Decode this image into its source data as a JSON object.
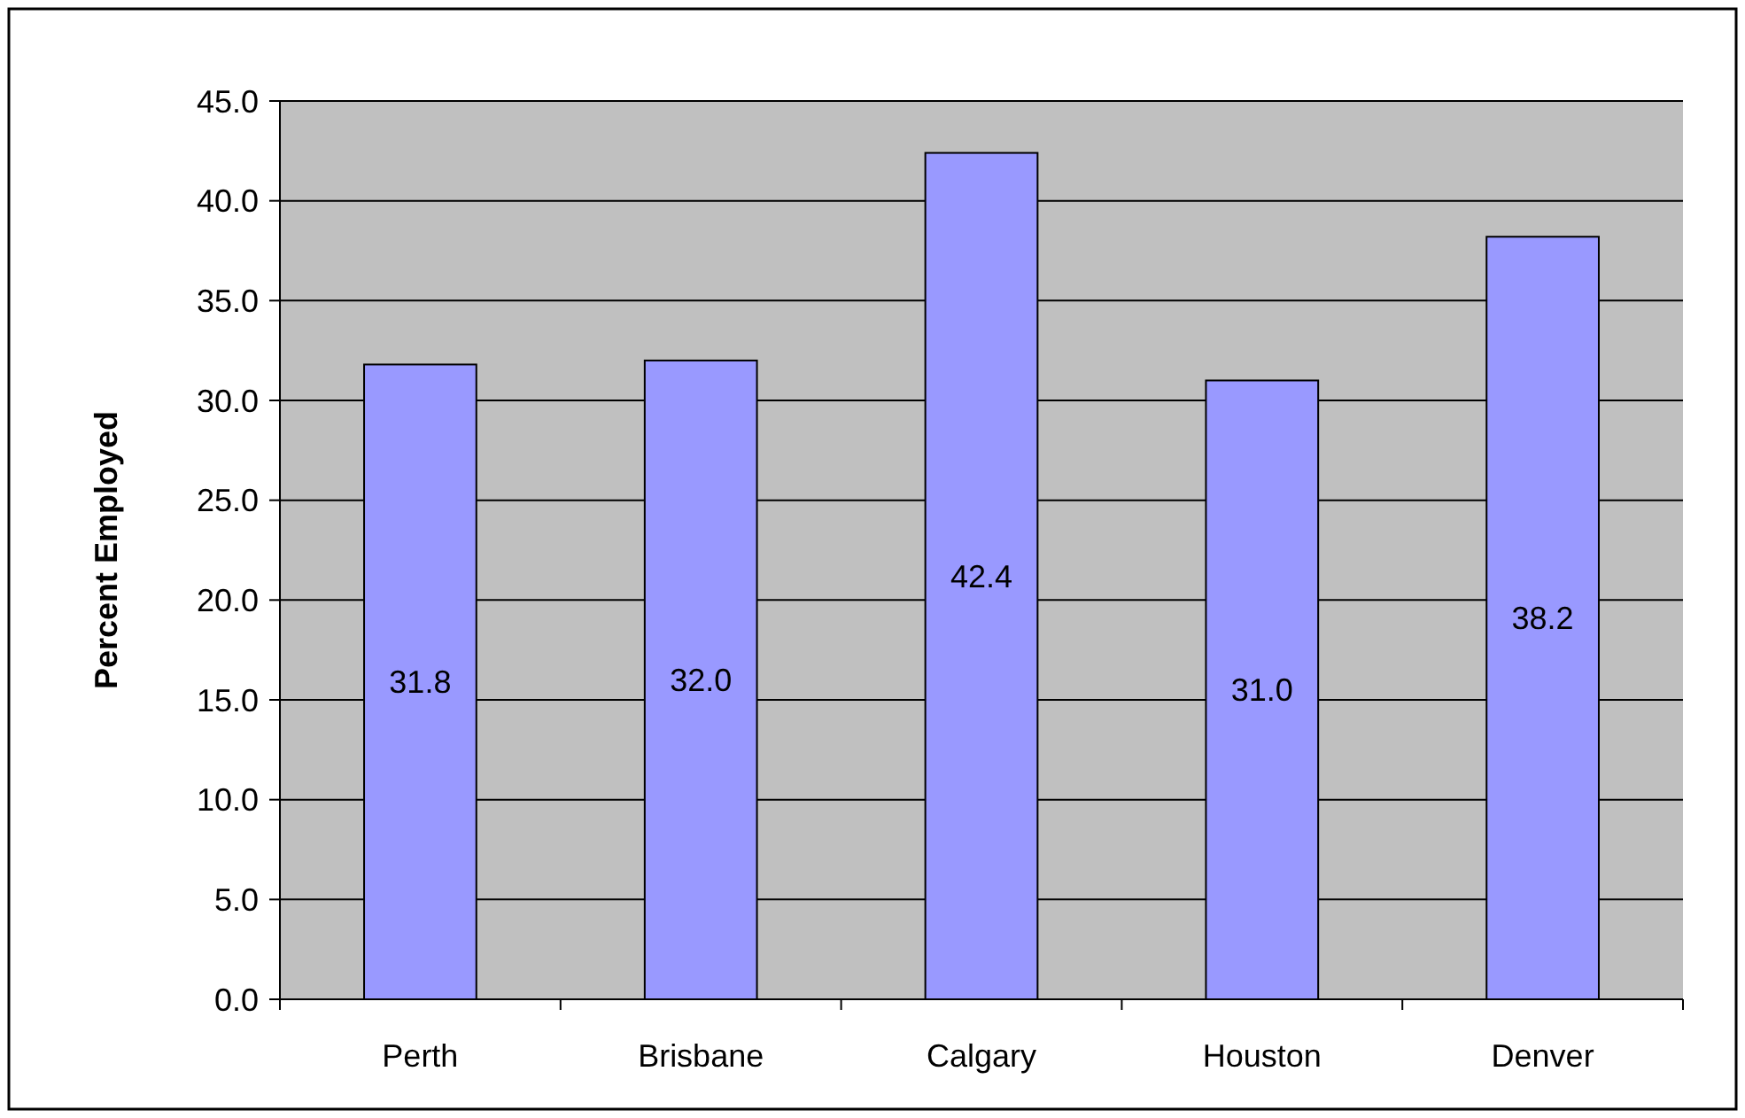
{
  "chart_data": {
    "type": "bar",
    "ylabel": "Percent Employed",
    "categories": [
      "Perth",
      "Brisbane",
      "Calgary",
      "Houston",
      "Denver"
    ],
    "values": [
      31.8,
      32.0,
      42.4,
      31.0,
      38.2
    ],
    "value_labels": [
      "31.8",
      "32.0",
      "42.4",
      "31.0",
      "38.2"
    ],
    "color": "#9999ff",
    "ylim": [
      0,
      45
    ],
    "yticks": [
      {
        "value": 0,
        "label": "0.0"
      },
      {
        "value": 5,
        "label": "5.0"
      },
      {
        "value": 10,
        "label": "10.0"
      },
      {
        "value": 15,
        "label": "15.0"
      },
      {
        "value": 20,
        "label": "20.0"
      },
      {
        "value": 25,
        "label": "25.0"
      },
      {
        "value": 30,
        "label": "30.0"
      },
      {
        "value": 35,
        "label": "35.0"
      },
      {
        "value": 40,
        "label": "40.0"
      },
      {
        "value": 45,
        "label": "45.0"
      }
    ],
    "grid": "y"
  }
}
